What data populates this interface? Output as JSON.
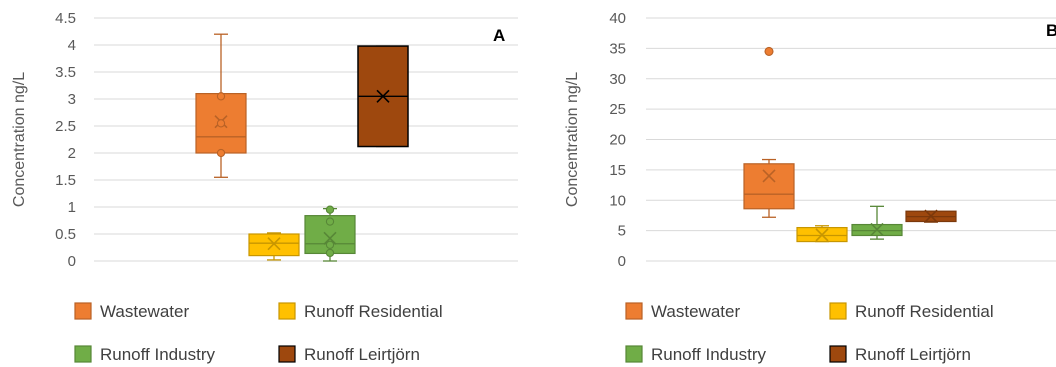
{
  "chart_data": [
    {
      "type": "box",
      "panel_label": "A",
      "ylabel": "Concentration ng/L",
      "ylim": [
        0,
        4.5
      ],
      "yticks": [
        "0",
        "0.5",
        "1",
        "1.5",
        "2",
        "2.5",
        "3",
        "3.5",
        "4",
        "4.5"
      ],
      "ytick_values": [
        0,
        0.5,
        1,
        1.5,
        2,
        2.5,
        3,
        3.5,
        4,
        4.5
      ],
      "grid": true,
      "legend_position": "bottom",
      "series": [
        {
          "name": "Wastewater",
          "color": "#ED7D31",
          "min": 1.55,
          "q1": 2.0,
          "median": 2.3,
          "q3": 3.1,
          "max": 4.2,
          "mean": 2.58,
          "points": [
            3.05,
            2.55,
            2.0
          ]
        },
        {
          "name": "Runoff Residential",
          "color": "#FFC000",
          "min": 0.02,
          "q1": 0.1,
          "median": 0.33,
          "q3": 0.5,
          "max": 0.52,
          "mean": 0.32,
          "points": []
        },
        {
          "name": "Runoff Industry",
          "color": "#70AD47",
          "min": 0.0,
          "q1": 0.14,
          "median": 0.32,
          "q3": 0.84,
          "max": 0.97,
          "mean": 0.42,
          "points": [
            0.95,
            0.73,
            0.3,
            0.15
          ]
        },
        {
          "name": "Runoff Leirtjörn",
          "color": "#9E480E",
          "min": 2.12,
          "q1": 2.12,
          "median": 3.05,
          "q3": 3.98,
          "max": 3.98,
          "mean": 3.05,
          "points": []
        }
      ]
    },
    {
      "type": "box",
      "panel_label": "B",
      "ylabel": "Concentration ng/L",
      "ylim": [
        0,
        40
      ],
      "yticks": [
        "0",
        "5",
        "10",
        "15",
        "20",
        "25",
        "30",
        "35",
        "40"
      ],
      "ytick_values": [
        0,
        5,
        10,
        15,
        20,
        25,
        30,
        35,
        40
      ],
      "grid": true,
      "legend_position": "bottom",
      "series": [
        {
          "name": "Wastewater",
          "color": "#ED7D31",
          "min": 7.2,
          "q1": 8.6,
          "median": 11.0,
          "q3": 16.0,
          "max": 16.7,
          "mean": 14.0,
          "outliers": [
            34.5
          ]
        },
        {
          "name": "Runoff Residential",
          "color": "#FFC000",
          "min": 3.2,
          "q1": 3.2,
          "median": 4.2,
          "q3": 5.5,
          "max": 5.8,
          "mean": 4.3,
          "outliers": []
        },
        {
          "name": "Runoff Industry",
          "color": "#70AD47",
          "min": 3.6,
          "q1": 4.2,
          "median": 5.0,
          "q3": 6.0,
          "max": 9.0,
          "mean": 5.2,
          "outliers": []
        },
        {
          "name": "Runoff Leirtjörn",
          "color": "#9E480E",
          "min": 6.4,
          "q1": 6.5,
          "median": 7.3,
          "q3": 8.2,
          "max": 8.2,
          "mean": 7.4,
          "outliers": []
        }
      ]
    }
  ]
}
